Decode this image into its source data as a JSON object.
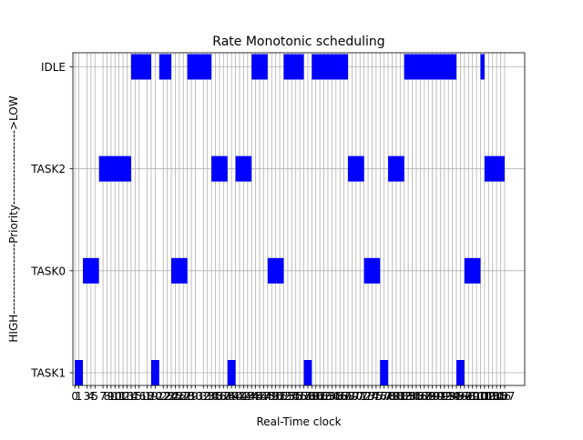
{
  "chart_data": {
    "type": "gantt",
    "title": "Rate Monotonic scheduling",
    "xlabel": "Real-Time clock",
    "ylabel": "HIGH------------------Priority------------------->LOW",
    "tasks": [
      "TASK1",
      "TASK0",
      "TASK2",
      "IDLE"
    ],
    "xlim": [
      -0.5,
      112
    ],
    "grid": true,
    "bar_color": "#0000ff",
    "x_ticks": [
      0,
      1,
      3,
      4,
      5,
      7,
      8,
      9,
      10,
      11,
      12,
      13,
      14,
      15,
      16,
      18,
      19,
      20,
      22,
      23,
      24,
      25,
      26,
      27,
      28,
      29,
      30,
      32,
      33,
      34,
      35,
      36,
      37,
      38,
      39,
      40,
      41,
      42,
      43,
      44,
      45,
      46,
      47,
      48,
      49,
      50,
      51,
      52,
      53,
      54,
      55,
      56,
      57,
      58,
      59,
      60,
      61,
      62,
      63,
      64,
      65,
      66,
      67,
      68,
      69,
      70,
      71,
      72,
      73,
      74,
      75,
      76,
      77,
      78,
      79,
      80,
      81,
      82,
      83,
      84,
      85,
      86,
      87,
      88,
      89,
      90,
      91,
      92,
      93,
      94,
      95,
      96,
      97,
      98,
      99,
      100,
      101,
      102,
      103,
      104,
      105,
      106,
      107
    ],
    "segments": [
      {
        "task": "TASK1",
        "start": 0,
        "end": 2
      },
      {
        "task": "TASK0",
        "start": 2,
        "end": 6
      },
      {
        "task": "TASK2",
        "start": 6,
        "end": 14
      },
      {
        "task": "IDLE",
        "start": 14,
        "end": 19
      },
      {
        "task": "TASK1",
        "start": 19,
        "end": 21
      },
      {
        "task": "IDLE",
        "start": 21,
        "end": 24
      },
      {
        "task": "TASK0",
        "start": 24,
        "end": 28
      },
      {
        "task": "IDLE",
        "start": 28,
        "end": 34
      },
      {
        "task": "TASK2",
        "start": 34,
        "end": 38
      },
      {
        "task": "TASK1",
        "start": 38,
        "end": 40
      },
      {
        "task": "TASK2",
        "start": 40,
        "end": 44
      },
      {
        "task": "IDLE",
        "start": 44,
        "end": 48
      },
      {
        "task": "TASK0",
        "start": 48,
        "end": 52
      },
      {
        "task": "IDLE",
        "start": 52,
        "end": 57
      },
      {
        "task": "TASK1",
        "start": 57,
        "end": 59
      },
      {
        "task": "IDLE",
        "start": 59,
        "end": 68
      },
      {
        "task": "TASK2",
        "start": 68,
        "end": 72
      },
      {
        "task": "TASK0",
        "start": 72,
        "end": 76
      },
      {
        "task": "TASK1",
        "start": 76,
        "end": 78
      },
      {
        "task": "TASK2",
        "start": 78,
        "end": 82
      },
      {
        "task": "IDLE",
        "start": 82,
        "end": 95
      },
      {
        "task": "TASK1",
        "start": 95,
        "end": 97
      },
      {
        "task": "TASK0",
        "start": 97,
        "end": 101
      },
      {
        "task": "IDLE",
        "start": 101,
        "end": 102
      },
      {
        "task": "TASK2",
        "start": 102,
        "end": 107
      }
    ]
  }
}
